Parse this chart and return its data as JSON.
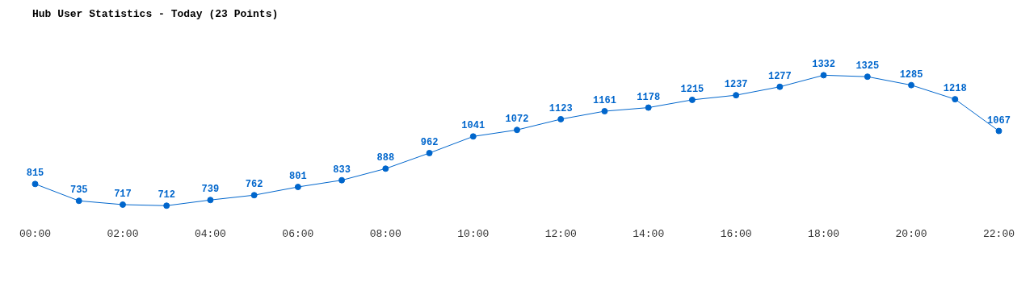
{
  "chart_data": {
    "type": "line",
    "title": "Hub User Statistics - Today (23 Points)",
    "categories": [
      "00:00",
      null,
      "02:00",
      null,
      "04:00",
      null,
      "06:00",
      null,
      "08:00",
      null,
      "10:00",
      null,
      "12:00",
      null,
      "14:00",
      null,
      "16:00",
      null,
      "18:00",
      null,
      "20:00",
      null,
      "22:00"
    ],
    "values": [
      815,
      735,
      717,
      712,
      739,
      762,
      801,
      833,
      888,
      962,
      1041,
      1072,
      1123,
      1161,
      1178,
      1215,
      1237,
      1277,
      1332,
      1325,
      1285,
      1218,
      1067
    ],
    "color": "#0066cc",
    "data_labels": true,
    "marker": "circle",
    "grid": false,
    "legend": false
  }
}
